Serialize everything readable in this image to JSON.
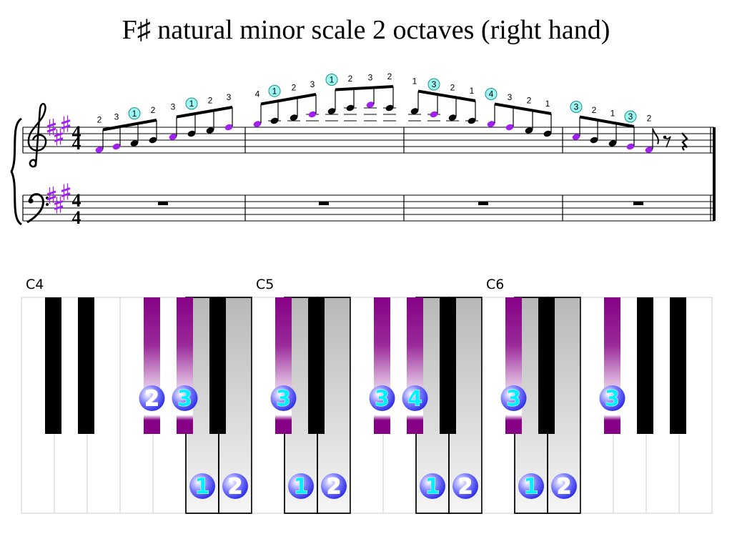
{
  "title": "F♯ natural minor scale 2 octaves (right hand)",
  "staff": {
    "time_signature": [
      "4",
      "4"
    ],
    "fingering": [
      "2",
      "3",
      "1",
      "2",
      "3",
      "1",
      "2",
      "3",
      "4",
      "1",
      "2",
      "3",
      "1",
      "2",
      "3",
      "2",
      "1",
      "3",
      "2",
      "1",
      "4",
      "3",
      "2",
      "1",
      "3",
      "2",
      "1",
      "3",
      "2"
    ]
  },
  "keyboard": {
    "octave_labels": [
      "C4",
      "C5",
      "C6"
    ],
    "black_key_fingering": [
      "2",
      "3",
      "3",
      "3",
      "4",
      "3",
      "3"
    ],
    "white_key_fingering": [
      "1",
      "2",
      "1",
      "2",
      "1",
      "2",
      "1",
      "2"
    ]
  }
}
